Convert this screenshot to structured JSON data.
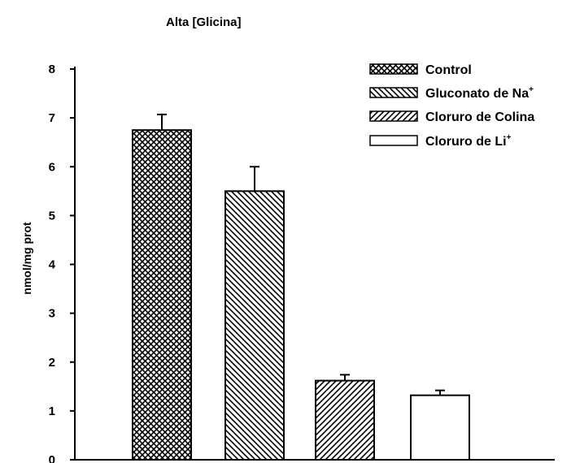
{
  "chart_data": {
    "type": "bar",
    "title": "Alta [Glicina]",
    "xlabel": "",
    "ylabel": "nmol/mg prot",
    "ylim": [
      0,
      8
    ],
    "yticks": [
      "0",
      "1",
      "2",
      "3",
      "4",
      "5",
      "6",
      "7",
      "8"
    ],
    "grid": false,
    "legend_position": "top-right",
    "series": [
      {
        "name": "Control",
        "name_sup": "",
        "value": 6.75,
        "error": 0.32,
        "pattern": "crosshatch"
      },
      {
        "name": "Gluconato de Na",
        "name_sup": "+",
        "value": 5.5,
        "error": 0.5,
        "pattern": "backslash-hatch"
      },
      {
        "name": "Cloruro de Colina",
        "name_sup": "",
        "value": 1.62,
        "error": 0.12,
        "pattern": "slash-hatch"
      },
      {
        "name": "Cloruro de Li",
        "name_sup": "+",
        "value": 1.32,
        "error": 0.1,
        "pattern": "none"
      }
    ]
  }
}
